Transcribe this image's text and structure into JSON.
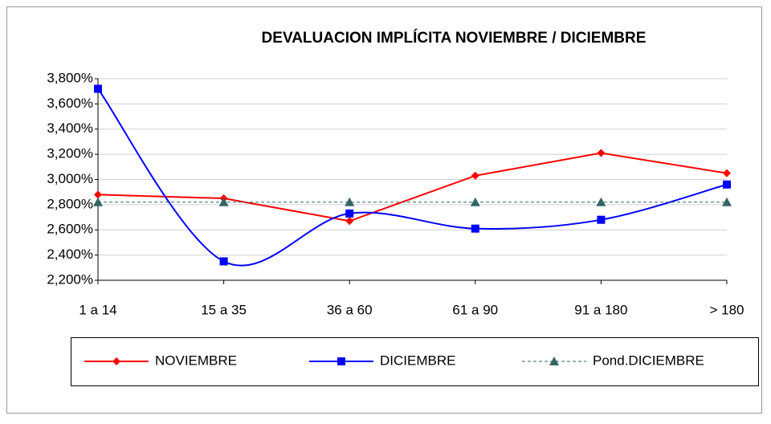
{
  "chart_data": {
    "type": "line",
    "title": "DEVALUACION IMPLÍCITA NOVIEMBRE / DICIEMBRE",
    "categories": [
      "1 a 14",
      "15 a 35",
      "36 a 60",
      "61 a 90",
      "91 a 180",
      "> 180"
    ],
    "series": [
      {
        "name": "NOVIEMBRE",
        "color": "#ff0000",
        "marker": "diamond",
        "smooth": false,
        "dashed": false,
        "values": [
          2.88,
          2.85,
          2.67,
          3.03,
          3.21,
          3.05
        ]
      },
      {
        "name": "DICIEMBRE",
        "color": "#0000ff",
        "marker": "square",
        "smooth": true,
        "dashed": false,
        "values": [
          3.72,
          2.35,
          2.73,
          2.61,
          2.68,
          2.96
        ]
      },
      {
        "name": "Pond.DICIEMBRE",
        "color": "#336666",
        "marker": "triangle",
        "smooth": false,
        "dashed": true,
        "values": [
          2.82,
          2.82,
          2.82,
          2.82,
          2.82,
          2.82
        ]
      }
    ],
    "ylim": [
      2.2,
      3.8
    ],
    "yticks": [
      {
        "value": 2.2,
        "label": "2,200%"
      },
      {
        "value": 2.4,
        "label": "2,400%"
      },
      {
        "value": 2.6,
        "label": "2,600%"
      },
      {
        "value": 2.8,
        "label": "2,800%"
      },
      {
        "value": 3.0,
        "label": "3,000%"
      },
      {
        "value": 3.2,
        "label": "3,200%"
      },
      {
        "value": 3.4,
        "label": "3,400%"
      },
      {
        "value": 3.6,
        "label": "3,600%"
      },
      {
        "value": 3.8,
        "label": "3,800%"
      }
    ],
    "grid": true,
    "legend": "bottom"
  }
}
